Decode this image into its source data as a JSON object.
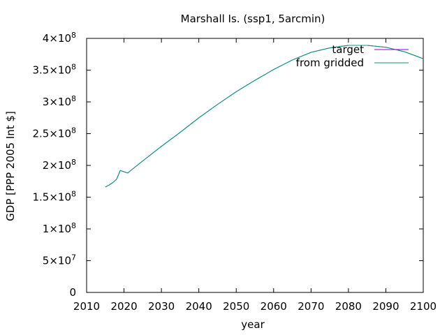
{
  "chart_data": {
    "type": "line",
    "title": "Marshall Is. (ssp1, 5arcmin)",
    "xlabel": "year",
    "ylabel": "GDP [PPP 2005 Int $]",
    "xlim": [
      2010,
      2100
    ],
    "ylim": [
      0,
      400000000
    ],
    "x_ticks": [
      "2010",
      "2020",
      "2030",
      "2040",
      "2050",
      "2060",
      "2070",
      "2080",
      "2090",
      "2100"
    ],
    "y_ticks": [
      {
        "value": 0,
        "mantissa": "0",
        "exp": ""
      },
      {
        "value": 50000000,
        "mantissa": "5×10",
        "exp": "7"
      },
      {
        "value": 100000000,
        "mantissa": "1×10",
        "exp": "8"
      },
      {
        "value": 150000000,
        "mantissa": "1.5×10",
        "exp": "8"
      },
      {
        "value": 200000000,
        "mantissa": "2×10",
        "exp": "8"
      },
      {
        "value": 250000000,
        "mantissa": "2.5×10",
        "exp": "8"
      },
      {
        "value": 300000000,
        "mantissa": "3×10",
        "exp": "8"
      },
      {
        "value": 350000000,
        "mantissa": "3.5×10",
        "exp": "8"
      },
      {
        "value": 400000000,
        "mantissa": "4×10",
        "exp": "8"
      }
    ],
    "grid": false,
    "legend_position": "top-right",
    "x": [
      2015,
      2016,
      2017,
      2018,
      2019,
      2020,
      2021,
      2022,
      2025,
      2030,
      2035,
      2040,
      2045,
      2050,
      2055,
      2060,
      2065,
      2070,
      2075,
      2080,
      2085,
      2090,
      2095,
      2100
    ],
    "series": [
      {
        "name": "target",
        "color": "#9400d3",
        "values": [
          166000000,
          169000000,
          173000000,
          178000000,
          192000000,
          190000000,
          188000000,
          193000000,
          207000000,
          230000000,
          252000000,
          275000000,
          296000000,
          316000000,
          334000000,
          351000000,
          366000000,
          378000000,
          385000000,
          389000000,
          389000000,
          386000000,
          379000000,
          368000000
        ]
      },
      {
        "name": "from gridded",
        "color": "#009e73",
        "values": [
          166000000,
          169000000,
          173000000,
          178000000,
          192000000,
          190000000,
          188000000,
          193000000,
          207000000,
          230000000,
          252000000,
          275000000,
          296000000,
          316000000,
          334000000,
          351000000,
          366000000,
          378000000,
          385000000,
          389000000,
          389000000,
          386000000,
          379000000,
          368000000
        ]
      }
    ]
  }
}
